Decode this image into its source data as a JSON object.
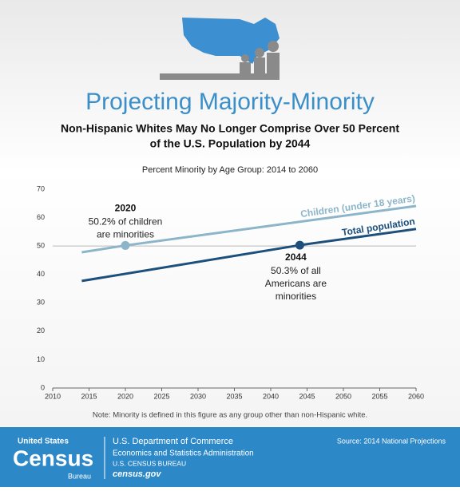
{
  "header": {
    "title": "Projecting Majority-Minority",
    "subtitle": [
      "Non-Hispanic Whites May No Longer Comprise Over 50 Percent",
      "of the U.S. Population by 2044"
    ]
  },
  "chart_data": {
    "type": "line",
    "title": "Percent Minority by Age Group: 2014 to 2060",
    "xlim": [
      2010,
      2060
    ],
    "xticks": [
      2010,
      2015,
      2020,
      2025,
      2030,
      2035,
      2040,
      2045,
      2050,
      2055,
      2060
    ],
    "ylim": [
      0,
      70
    ],
    "yticks": [
      0,
      10,
      20,
      30,
      40,
      50,
      60,
      70
    ],
    "reference_line": 50,
    "series": [
      {
        "name": "Children (under 18 years)",
        "color": "#8db5c9",
        "x": [
          2014,
          2020,
          2060
        ],
        "values": [
          47.8,
          50.2,
          64.1
        ]
      },
      {
        "name": "Total population",
        "color": "#1c4f7c",
        "x": [
          2014,
          2044,
          2060
        ],
        "values": [
          37.7,
          50.3,
          56.0
        ]
      }
    ],
    "annotations": [
      {
        "x": 2020,
        "y": 50.2,
        "color": "#8db5c9",
        "lines": [
          "50.2% of children",
          "are minorities"
        ]
      },
      {
        "x": 2044,
        "y": 50.3,
        "color": "#1c4f7c",
        "lines": [
          "50.3% of all",
          "Americans are",
          "minorities"
        ]
      }
    ],
    "note": "Note: Minority is defined in this figure as any group other than non-Hispanic white."
  },
  "footer": {
    "logo_top": "United States",
    "logo_main": "Census",
    "logo_bottom": "Bureau",
    "department": "U.S. Department of Commerce",
    "administration": "Economics and Statistics Administration",
    "bureau": "U.S. CENSUS BUREAU",
    "website": "census.gov",
    "source": "Source: 2014 National Projections"
  }
}
